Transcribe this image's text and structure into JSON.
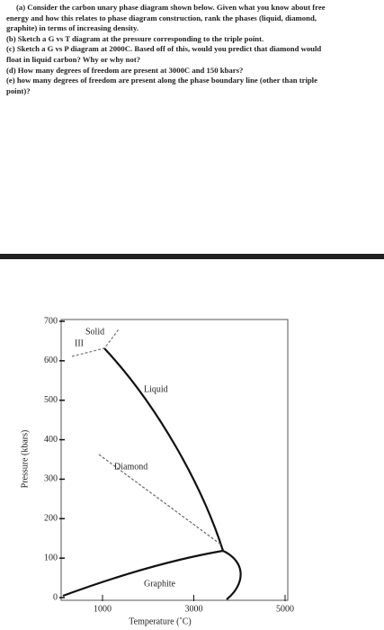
{
  "question": {
    "lines": [
      "(a) Consider the carbon unary phase diagram shown below. Given what you know about free",
      "energy and how this relates to phase diagram construction, rank the phases (liquid, diamond,",
      "graphite) in terms of increasing density.",
      "(b) Sketch a G vs T diagram at the pressure corresponding to the triple point.",
      "(c) Sketch a G vs P diagram at 2000C. Based off of this, would you predict that diamond would",
      "float in liquid carbon? Why or why not?",
      "(d) How many degrees of freedom are present at 3000C and 150 kbars?",
      "(e) how many degrees of freedom are present along the phase boundary line (other than triple",
      "point)?"
    ]
  },
  "diagram": {
    "y_label": "Pressure (kbars)",
    "x_label": "Temperature (˚C)",
    "yticks": [
      0,
      100,
      200,
      300,
      400,
      500,
      600,
      700
    ],
    "xticks": [
      1000,
      3000,
      5000
    ],
    "regions": {
      "solid": "Solid",
      "solid_number": "III",
      "liquid": "Liquid",
      "diamond": "Diamond",
      "graphite": "Graphite"
    }
  }
}
